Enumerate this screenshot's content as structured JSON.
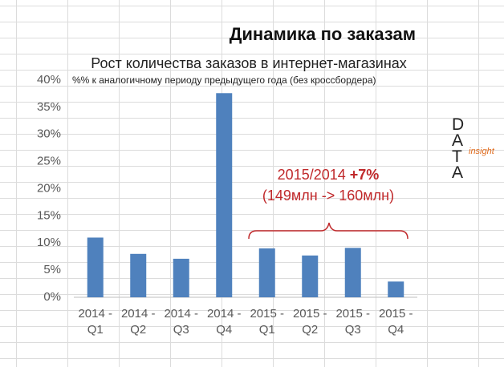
{
  "chart_data": {
    "type": "bar",
    "title": "Динамика по заказам",
    "subtitle": "Рост количества заказов в интернет-магазинах",
    "note": "%% к аналогичному периоду предыдущего года (без кроссбордера)",
    "categories": [
      "2014 - Q1",
      "2014 - Q2",
      "2014 - Q3",
      "2014 - Q4",
      "2015 - Q1",
      "2015 - Q2",
      "2015 - Q3",
      "2015 - Q4"
    ],
    "values": [
      11,
      8,
      7.1,
      37.6,
      9,
      7.7,
      9.1,
      2.9
    ],
    "color": "#4f81bd",
    "ylim": [
      0,
      40
    ],
    "yticks": [
      {
        "value": 0,
        "label": "0%"
      },
      {
        "value": 5,
        "label": "5%"
      },
      {
        "value": 10,
        "label": "10%"
      },
      {
        "value": 15,
        "label": "15%"
      },
      {
        "value": 20,
        "label": "20%"
      },
      {
        "value": 25,
        "label": "25%"
      },
      {
        "value": 30,
        "label": "30%"
      },
      {
        "value": 35,
        "label": "35%"
      },
      {
        "value": 40,
        "label": "40%"
      }
    ],
    "grid": false,
    "annotation": {
      "text": "2015/2014",
      "highlight": "+7%",
      "detail": "(149млн -> 160млн)",
      "color": "#c0292b"
    },
    "logo": {
      "text": "DATA",
      "sub": "insight"
    }
  }
}
